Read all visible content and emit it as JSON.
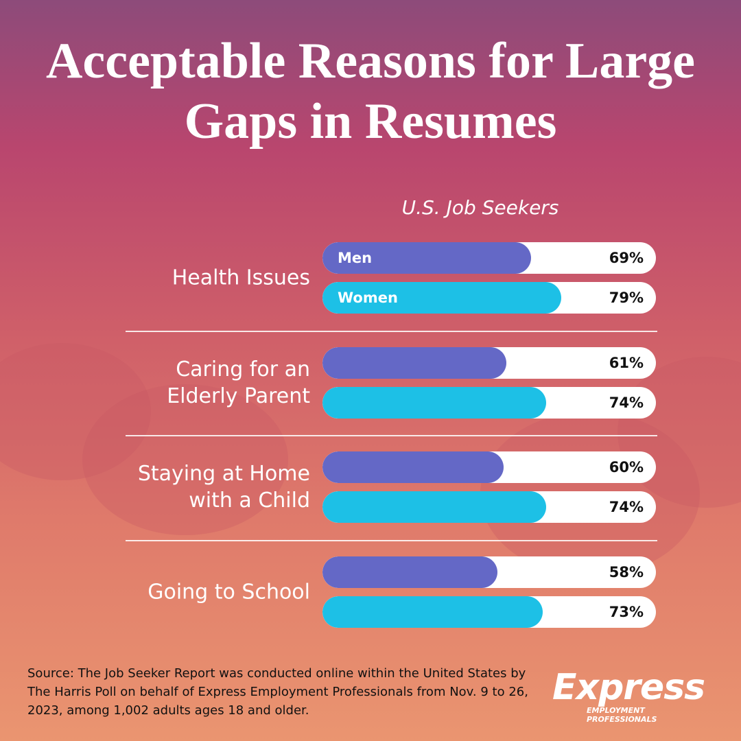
{
  "chart_data": {
    "type": "bar",
    "orientation": "horizontal",
    "title": "Acceptable Reasons for Large Gaps in Resumes",
    "subtitle": "U.S. Job Seekers",
    "categories": [
      "Health Issues",
      "Caring for an Elderly Parent",
      "Staying at Home with a Child",
      "Going to School"
    ],
    "series": [
      {
        "name": "Men",
        "color": "#6468c6",
        "values": [
          69,
          61,
          60,
          58
        ],
        "value_labels": [
          "69%",
          "61%",
          "60%",
          "58%"
        ]
      },
      {
        "name": "Women",
        "color": "#1dc0e6",
        "values": [
          79,
          74,
          74,
          73
        ],
        "value_labels": [
          "79%",
          "74%",
          "74%",
          "73%"
        ]
      }
    ],
    "xlim": [
      0,
      100
    ],
    "source": "Source: The Job Seeker Report was conducted online within the United States by The Harris Poll on behalf of Express Employment Professionals from Nov. 9 to 26, 2023, among 1,002 adults ages 18 and older.",
    "logo": {
      "name": "Express",
      "tagline": "EMPLOYMENT PROFESSIONALS"
    }
  }
}
